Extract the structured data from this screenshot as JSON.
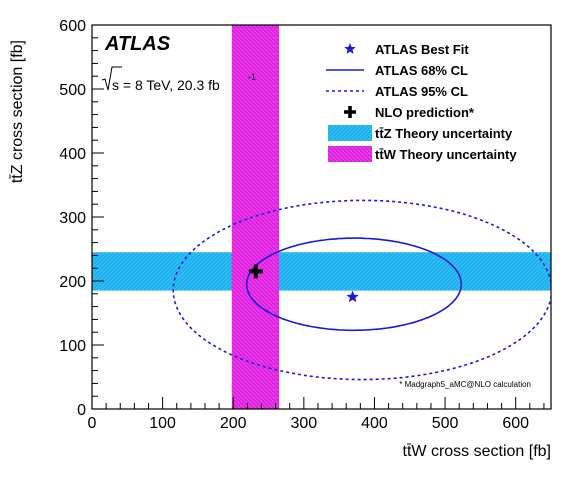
{
  "chart_data": {
    "type": "scatter",
    "experiment_label": "ATLAS",
    "energy_label": "s = 8 TeV,  20.3 fb",
    "energy_label_superscript": "-1",
    "xlabel": "tt̄W cross section [fb]",
    "ylabel": "tt̄Z cross section [fb]",
    "xlim": [
      0,
      650
    ],
    "ylim": [
      0,
      600
    ],
    "x_ticks": [
      0,
      100,
      200,
      300,
      400,
      500,
      600
    ],
    "y_ticks": [
      0,
      100,
      200,
      300,
      400,
      500,
      600
    ],
    "x_tick_labels": [
      "0",
      "100",
      "200",
      "300",
      "400",
      "500",
      "600"
    ],
    "y_tick_labels": [
      "0",
      "100",
      "200",
      "300",
      "400",
      "500",
      "600"
    ],
    "best_fit": {
      "x": 369,
      "y": 175
    },
    "nlo_prediction": {
      "x": 232,
      "y": 215
    },
    "ttz_theory_band": {
      "ymin": 185,
      "ymax": 245
    },
    "ttw_theory_band": {
      "xmin": 198,
      "xmax": 265
    },
    "contour_68": {
      "center_x": 371,
      "center_y": 195,
      "half_width_x": 152,
      "half_width_y": 72,
      "tilt": -0.35
    },
    "contour_95": {
      "center_x": 383,
      "center_y": 186,
      "half_width_x": 268,
      "half_width_y": 140,
      "tilt": -0.25
    },
    "legend_position": "top-right",
    "legend": [
      {
        "label": "ATLAS Best Fit",
        "marker": "star"
      },
      {
        "label": "ATLAS 68% CL",
        "marker": "solid-line"
      },
      {
        "label": "ATLAS 95% CL",
        "marker": "dashed-line"
      },
      {
        "label": "NLO prediction*",
        "marker": "cross"
      },
      {
        "label": "tt̄Z Theory uncertainty",
        "marker": "cyan-box"
      },
      {
        "label": "tt̄W Theory uncertainty",
        "marker": "magenta-box"
      }
    ],
    "footnote": "* Madgraph5_aMC@NLO calculation",
    "colors": {
      "contour": "#1a1adb",
      "best_fit": "#1a1adb",
      "nlo": "#000000",
      "ttz_band": "#1fb0ee",
      "ttw_band": "#dd22dd",
      "frame": "#000000"
    }
  }
}
